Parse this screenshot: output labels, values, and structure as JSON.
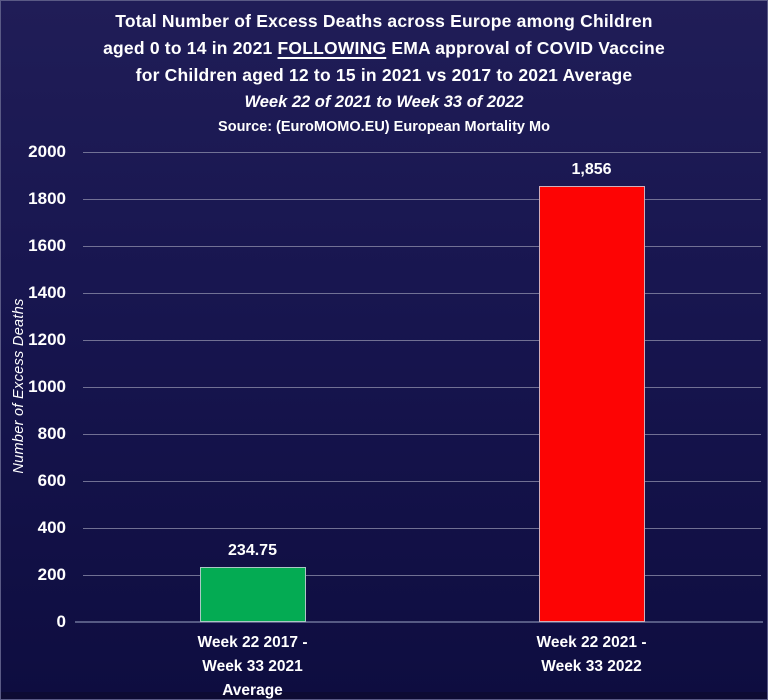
{
  "title": {
    "line1": "Total Number of Excess Deaths across Europe among Children",
    "line2": {
      "pre": "aged 0 to 14 in 2021 ",
      "underline": "FOLLOWING",
      "post": " EMA approval of COVID Vaccine"
    },
    "line3": "for Children aged 12 to 15 in 2021 vs 2017 to 2021 Average",
    "line4": "Week 22 of 2021 to Week 33 of 2022",
    "line5": "Source: (EuroMOMO.EU) European Mortality Mo"
  },
  "chart_data": {
    "type": "bar",
    "title": "Total Number of Excess Deaths across Europe among Children aged 0 to 14 in 2021 FOLLOWING EMA approval of COVID Vaccine for Children aged 12 to 15 in 2021 vs 2017 to 2021 Average",
    "subtitle": "Week 22 of 2021 to Week 33 of 2022",
    "source": "Source: (EuroMOMO.EU) European Mortality Mo",
    "categories": [
      [
        "Week 22 2017 -",
        "Week 33 2021",
        "Average"
      ],
      [
        "Week 22 2021 -",
        "Week 33 2022"
      ]
    ],
    "values": [
      234.75,
      1856
    ],
    "value_labels": [
      "234.75",
      "1,856"
    ],
    "bar_colors": [
      "#04ab53",
      "#fd0404"
    ],
    "xlabel": "",
    "ylabel": "Number of Excess Deaths",
    "ylim": [
      0,
      2000
    ],
    "yticks": [
      0,
      200,
      400,
      600,
      800,
      1000,
      1200,
      1400,
      1600,
      1800,
      2000
    ],
    "grid": true,
    "legend_position": "none"
  },
  "colors": {
    "background_top": "#201d57",
    "background_bottom": "#0e0d40",
    "gridline": "#8888a6",
    "zero_axis_line": "#565a84",
    "text": "#ffffff",
    "bar_average": "#04ab53",
    "bar_2021_2022": "#fd0404",
    "bar_border": "#c8cdd9"
  }
}
